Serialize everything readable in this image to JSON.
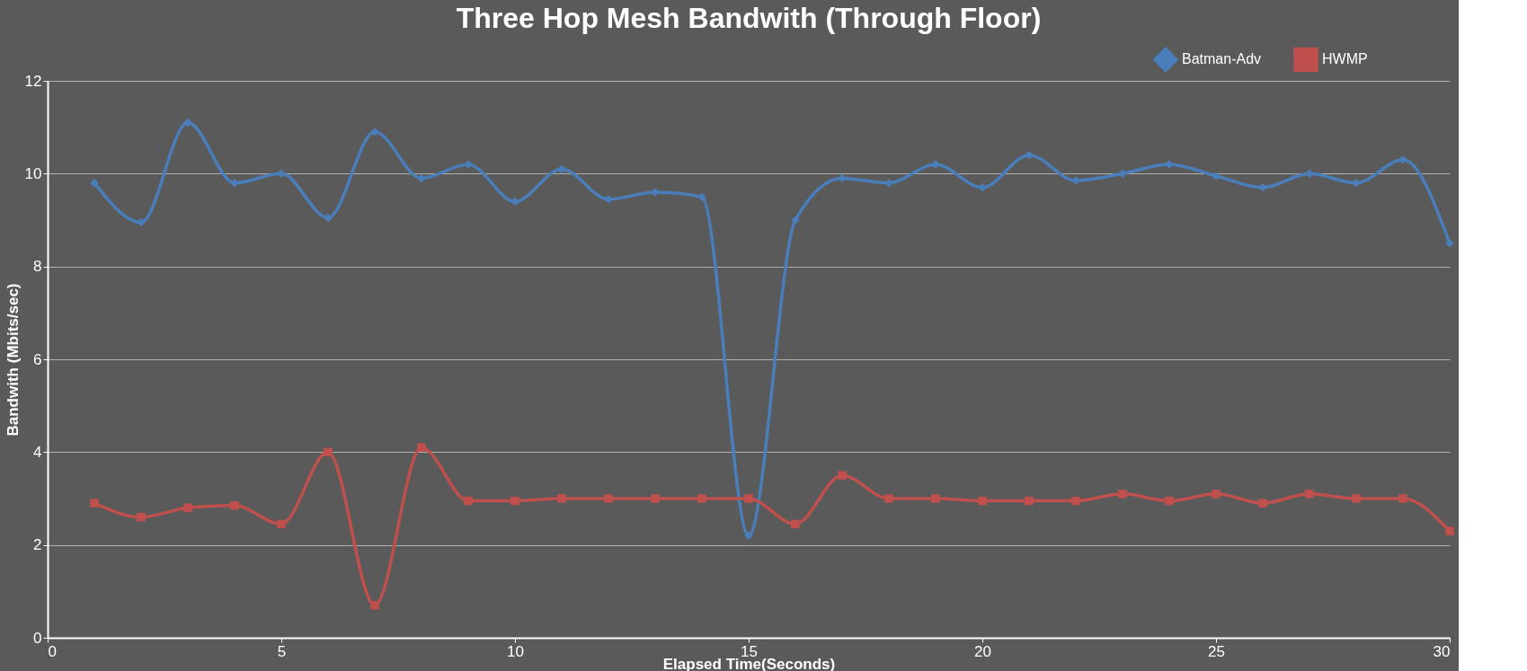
{
  "chart_data": {
    "type": "line",
    "title": "Three Hop Mesh Bandwith (Through Floor)",
    "xlabel": "Elapsed Time(Seconds)",
    "ylabel": "Bandwith (Mbits/sec)",
    "x": [
      1,
      2,
      3,
      4,
      5,
      6,
      7,
      8,
      9,
      10,
      11,
      12,
      13,
      14,
      15,
      16,
      17,
      18,
      19,
      20,
      21,
      22,
      23,
      24,
      25,
      26,
      27,
      28,
      29,
      30
    ],
    "series": [
      {
        "name": "Batman-Adv",
        "color": "#4a7ebb",
        "marker": "diamond",
        "values": [
          9.8,
          8.95,
          11.1,
          9.8,
          10.0,
          9.05,
          10.9,
          9.9,
          10.2,
          9.4,
          10.1,
          9.45,
          9.6,
          9.5,
          2.2,
          9.0,
          9.9,
          9.8,
          10.2,
          9.7,
          10.4,
          9.85,
          10.0,
          10.2,
          9.95,
          9.7,
          10.0,
          9.8,
          10.3,
          8.5
        ]
      },
      {
        "name": "HWMP",
        "color": "#c0504d",
        "marker": "square",
        "values": [
          2.9,
          2.6,
          2.8,
          2.85,
          2.45,
          4.0,
          0.7,
          4.1,
          2.95,
          2.95,
          3.0,
          3.0,
          3.0,
          3.0,
          3.0,
          2.45,
          3.5,
          3.0,
          3.0,
          2.95,
          2.95,
          2.95,
          3.1,
          2.95,
          3.1,
          2.9,
          3.1,
          3.0,
          3.0,
          2.3
        ]
      }
    ],
    "xlim": [
      0,
      30
    ],
    "xticks": [
      0,
      5,
      10,
      15,
      20,
      25,
      30
    ],
    "ylim": [
      0,
      12
    ],
    "yticks": [
      0,
      2,
      4,
      6,
      8,
      10,
      12
    ],
    "grid": "y",
    "legend": "top right",
    "line_style": "solid"
  }
}
